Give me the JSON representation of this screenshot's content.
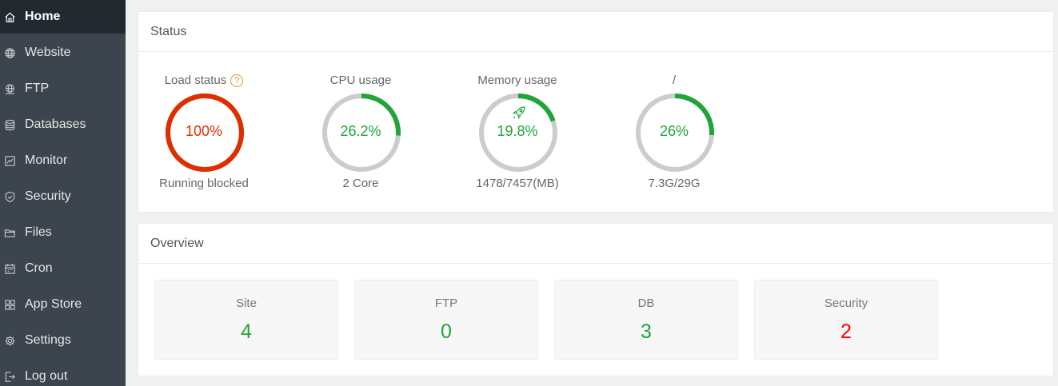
{
  "sidebar": {
    "items": [
      {
        "label": "Home",
        "icon": "home-icon",
        "active": true
      },
      {
        "label": "Website",
        "icon": "globe-icon"
      },
      {
        "label": "FTP",
        "icon": "ftp-icon"
      },
      {
        "label": "Databases",
        "icon": "database-icon"
      },
      {
        "label": "Monitor",
        "icon": "monitor-icon"
      },
      {
        "label": "Security",
        "icon": "shield-icon"
      },
      {
        "label": "Files",
        "icon": "folder-icon"
      },
      {
        "label": "Cron",
        "icon": "calendar-icon"
      },
      {
        "label": "App Store",
        "icon": "grid-icon"
      },
      {
        "label": "Settings",
        "icon": "gear-icon"
      },
      {
        "label": "Log out",
        "icon": "logout-icon"
      }
    ]
  },
  "status": {
    "title": "Status",
    "gauges": [
      {
        "title": "Load status",
        "value": "100%",
        "percent": 100,
        "sub": "Running blocked",
        "color": "#dd2f00",
        "help": "?"
      },
      {
        "title": "CPU usage",
        "value": "26.2%",
        "percent": 26.2,
        "sub": "2 Core",
        "color": "#20a53a"
      },
      {
        "title": "Memory usage",
        "value": "19.8%",
        "percent": 19.8,
        "sub": "1478/7457(MB)",
        "color": "#20a53a"
      },
      {
        "title": "/",
        "value": "26%",
        "percent": 26,
        "sub": "7.3G/29G",
        "color": "#20a53a"
      }
    ]
  },
  "overview": {
    "title": "Overview",
    "cards": [
      {
        "label": "Site",
        "value": "4",
        "color": "#20a53a"
      },
      {
        "label": "FTP",
        "value": "0",
        "color": "#20a53a"
      },
      {
        "label": "DB",
        "value": "3",
        "color": "#20a53a"
      },
      {
        "label": "Security",
        "value": "2",
        "color": "#ff0000"
      }
    ]
  },
  "colors": {
    "track": "#cccccc",
    "sidebar_bg": "#3c444d",
    "sidebar_active": "#22292f"
  }
}
